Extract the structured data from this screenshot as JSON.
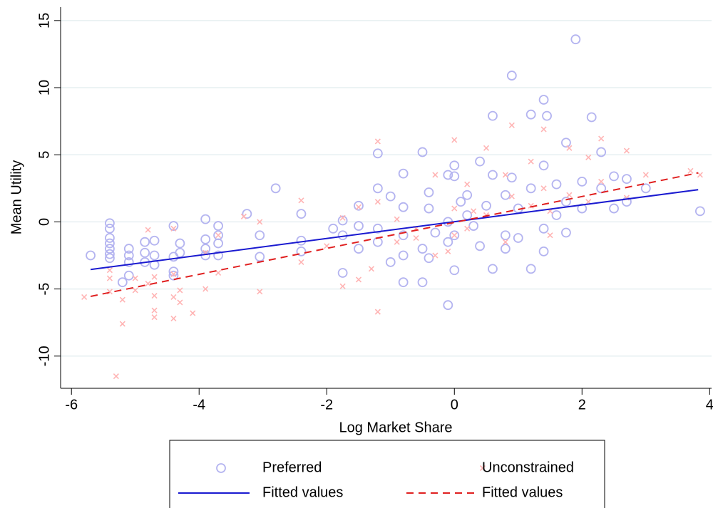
{
  "chart_data": {
    "type": "scatter",
    "x_label": "Log Market Share",
    "y_label": "Mean Utility",
    "xlim": [
      -6.17,
      4.03
    ],
    "ylim": [
      -12.4,
      16
    ],
    "xticks": [
      -6,
      -4,
      -2,
      0,
      2,
      4
    ],
    "yticks": [
      -10,
      -5,
      0,
      5,
      10,
      15
    ],
    "grid": true,
    "legend": "bottom",
    "series": [
      {
        "name": "Preferred",
        "color": "#b4b4f0",
        "marker": "circle",
        "x": [
          -5.4,
          -5.4,
          -5.4,
          -5.4,
          -5.4,
          -5.4,
          -5.4,
          -5.7,
          -5.1,
          -5.1,
          -5.1,
          -5.1,
          -5.2,
          -4.85,
          -4.85,
          -4.85,
          -4.7,
          -4.7,
          -4.7,
          -4.4,
          -4.4,
          -4.4,
          -4.4,
          -4.3,
          -4.3,
          -3.9,
          -3.9,
          -3.9,
          -3.9,
          -3.7,
          -3.7,
          -3.7,
          -3.7,
          -3.25,
          -3.05,
          -3.05,
          -2.8,
          -2.4,
          -2.4,
          -2.4,
          -1.9,
          -1.75,
          -1.75,
          -1.75,
          -1.5,
          -1.5,
          -1.5,
          -1.2,
          -1.2,
          -1.2,
          -1.2,
          -1.0,
          -1.0,
          -0.8,
          -0.8,
          -0.8,
          -0.8,
          -0.8,
          -0.5,
          -0.5,
          -0.5,
          -0.4,
          -0.4,
          -0.4,
          -0.1,
          -0.1,
          -0.1,
          -0.1,
          0,
          0,
          0,
          0,
          0.2,
          0.2,
          0.4,
          0.4,
          0.6,
          0.6,
          0.6,
          0.8,
          0.8,
          0.8,
          0.9,
          0.9,
          1.0,
          1.0,
          1.2,
          1.2,
          1.2,
          1.4,
          1.4,
          1.4,
          1.4,
          1.45,
          1.6,
          1.6,
          1.75,
          1.75,
          1.75,
          1.9,
          2.0,
          2.0,
          2.15,
          2.3,
          2.3,
          2.5,
          2.5,
          2.7,
          2.7,
          3.0,
          3.85,
          0.3,
          0.1,
          -0.3,
          0.5
        ],
        "values": [
          -0.1,
          -0.5,
          -1.2,
          -1.6,
          -2.0,
          -2.4,
          -2.7,
          -2.5,
          -2.0,
          -2.5,
          -3.0,
          -4.0,
          -4.5,
          -1.5,
          -2.3,
          -3.0,
          -1.4,
          -2.5,
          -3.2,
          -0.3,
          -2.6,
          -3.7,
          -4.0,
          -1.6,
          -2.3,
          0.2,
          -1.3,
          -2.0,
          -2.5,
          -0.3,
          -1.0,
          -1.6,
          -2.5,
          0.6,
          -1.0,
          -2.6,
          2.5,
          0.6,
          -1.4,
          -2.2,
          -0.5,
          0.1,
          -1.0,
          -3.8,
          1.2,
          -0.3,
          -2.0,
          2.5,
          5.1,
          -0.5,
          -1.5,
          1.9,
          -3.0,
          1.1,
          3.6,
          -1.0,
          -2.5,
          -4.5,
          5.2,
          -2.0,
          -4.5,
          2.2,
          1.0,
          -2.7,
          3.5,
          -6.2,
          0.0,
          -1.5,
          4.2,
          3.4,
          -3.6,
          -1.0,
          2.0,
          0.5,
          4.5,
          -1.8,
          7.9,
          3.5,
          -3.5,
          2.0,
          -1.0,
          -2.0,
          10.9,
          3.3,
          1.0,
          -1.2,
          8.0,
          2.5,
          -3.5,
          9.1,
          4.2,
          -0.5,
          -2.2,
          7.9,
          2.8,
          0.5,
          5.9,
          1.5,
          -0.8,
          13.6,
          3.0,
          1.0,
          7.8,
          5.2,
          2.5,
          3.4,
          1.0,
          1.5,
          3.2,
          2.5,
          0.8,
          -0.3,
          1.5,
          -0.8,
          1.2
        ]
      },
      {
        "name": "Unconstrained",
        "color": "#ffb4b4",
        "marker": "x",
        "x": [
          -5.8,
          -5.4,
          -5.4,
          -5.4,
          -5.2,
          -5.2,
          -5.3,
          -5.0,
          -5.0,
          -4.8,
          -4.8,
          -4.7,
          -4.7,
          -4.7,
          -4.7,
          -4.4,
          -4.4,
          -4.4,
          -4.4,
          -4.3,
          -4.3,
          -4.1,
          -3.9,
          -3.9,
          -3.7,
          -3.7,
          -3.3,
          -3.05,
          -3.05,
          -2.4,
          -2.4,
          -2.0,
          -1.75,
          -1.75,
          -1.5,
          -1.5,
          -1.3,
          -1.2,
          -1.2,
          -1.2,
          -0.9,
          -0.9,
          -0.6,
          -0.6,
          -0.3,
          -0.3,
          0,
          0,
          0,
          0.2,
          0.2,
          0.5,
          0.5,
          0.8,
          0.8,
          0.9,
          0.9,
          1.2,
          1.2,
          1.4,
          1.4,
          1.5,
          1.5,
          1.8,
          1.8,
          2.1,
          2.1,
          2.3,
          2.3,
          2.7,
          2.7,
          3.0,
          3.7,
          3.85,
          0.3,
          -0.1
        ],
        "values": [
          -5.6,
          -4.2,
          -5.2,
          -3.6,
          -7.6,
          -5.8,
          -11.5,
          -4.2,
          -5.1,
          -0.6,
          -4.6,
          -5.5,
          -6.6,
          -7.1,
          -4.1,
          -0.5,
          -3.9,
          -5.6,
          -7.2,
          -5.1,
          -6.0,
          -6.8,
          -5.0,
          -2.3,
          -3.8,
          -1.0,
          0.4,
          0.0,
          -5.2,
          -3.0,
          1.6,
          -1.8,
          0.3,
          -4.8,
          1.1,
          -4.3,
          -3.5,
          6.0,
          -6.7,
          1.5,
          -1.5,
          0.2,
          -0.5,
          -1.2,
          3.5,
          -2.5,
          6.1,
          1.0,
          -1.0,
          -0.5,
          2.8,
          5.5,
          0.5,
          3.5,
          -1.5,
          7.2,
          1.9,
          4.5,
          1.2,
          6.9,
          2.5,
          0.8,
          -1.0,
          5.5,
          2.0,
          4.8,
          1.5,
          6.2,
          3.0,
          5.3,
          1.8,
          3.5,
          3.8,
          3.5,
          0.8,
          -2.2
        ]
      },
      {
        "name": "Fitted values",
        "color": "#1a1ad0",
        "marker": "line",
        "x": [
          -5.7,
          3.82
        ],
        "values": [
          -3.55,
          2.4
        ]
      },
      {
        "name": "Fitted values",
        "color": "#e02020",
        "marker": "line",
        "dash": true,
        "x": [
          -5.7,
          3.82
        ],
        "values": [
          -5.55,
          3.65
        ]
      }
    ]
  }
}
